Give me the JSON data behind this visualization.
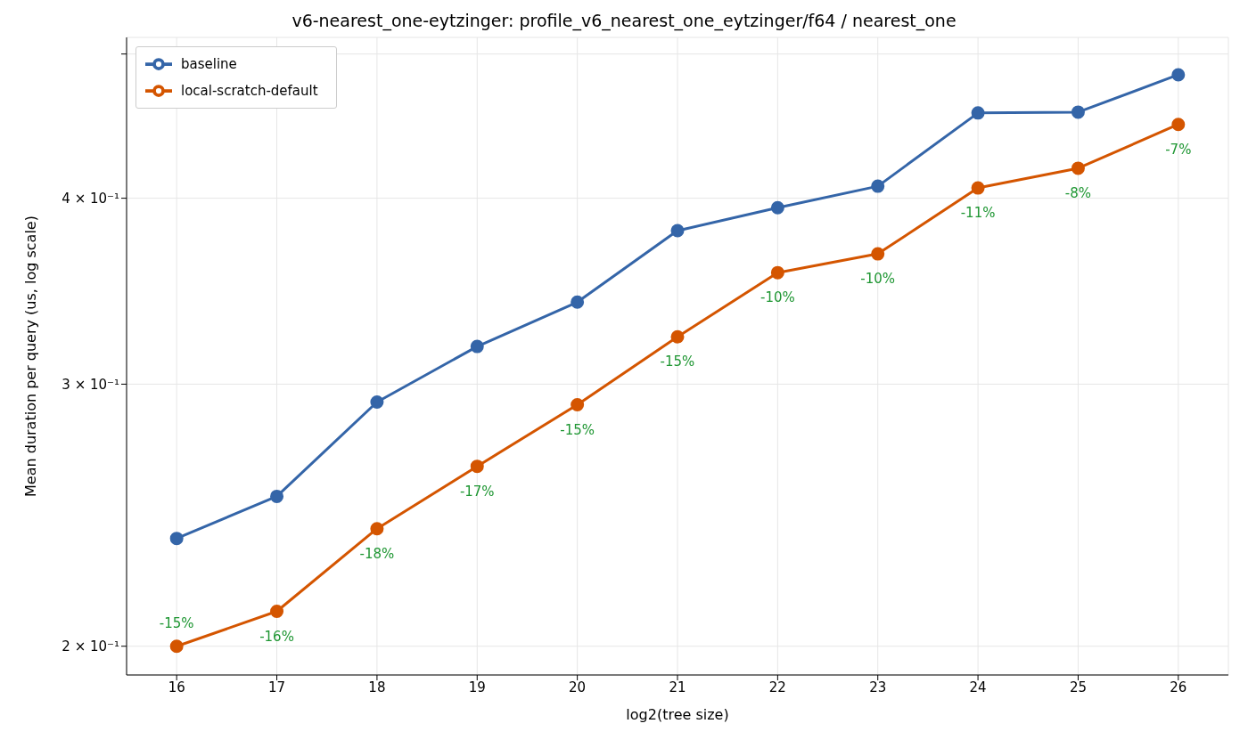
{
  "chart_data": {
    "type": "line",
    "title": "v6-nearest_one-eytzinger: profile_v6_nearest_one_eytzinger/f64 / nearest_one",
    "xlabel": "log2(tree size)",
    "ylabel": "Mean duration per query (us, log scale)",
    "x": [
      16,
      17,
      18,
      19,
      20,
      21,
      22,
      23,
      24,
      25,
      26
    ],
    "series": [
      {
        "name": "baseline",
        "color": "#3465a8",
        "values": [
          0.2363,
          0.2522,
          0.2918,
          0.318,
          0.3406,
          0.3804,
          0.3942,
          0.4075,
          0.4564,
          0.457,
          0.4842
        ]
      },
      {
        "name": "local-scratch-default",
        "color": "#d45500",
        "values": [
          0.2,
          0.2111,
          0.2399,
          0.2642,
          0.2906,
          0.3228,
          0.3565,
          0.367,
          0.4064,
          0.419,
          0.4484
        ]
      }
    ],
    "xlim": [
      15.5,
      26.5
    ],
    "xticks": [
      16,
      17,
      18,
      19,
      20,
      21,
      22,
      23,
      24,
      25,
      26
    ],
    "ylim": [
      0.1913,
      0.513
    ],
    "yticks": [
      {
        "value": 0.2,
        "label": "2 × 10⁻¹"
      },
      {
        "value": 0.3,
        "label": "3 × 10⁻¹"
      },
      {
        "value": 0.4,
        "label": "4 × 10⁻¹"
      },
      {
        "value": 0.5,
        "label": null
      }
    ],
    "log": "y",
    "grid": true,
    "legend": "top left",
    "marker": "circle",
    "line_style": "solid",
    "annotations": [
      {
        "text": "-15%",
        "x": 16,
        "y": 0.2
      },
      {
        "text": "-16%",
        "x": 17,
        "y": 0.2111
      },
      {
        "text": "-18%",
        "x": 18,
        "y": 0.2399
      },
      {
        "text": "-17%",
        "x": 19,
        "y": 0.2642
      },
      {
        "text": "-15%",
        "x": 20,
        "y": 0.2906
      },
      {
        "text": "-15%",
        "x": 21,
        "y": 0.3228
      },
      {
        "text": "-10%",
        "x": 22,
        "y": 0.3565
      },
      {
        "text": "-10%",
        "x": 23,
        "y": 0.367
      },
      {
        "text": "-11%",
        "x": 24,
        "y": 0.4064
      },
      {
        "text": "-8%",
        "x": 25,
        "y": 0.419
      },
      {
        "text": "-7%",
        "x": 26,
        "y": 0.4484
      }
    ]
  }
}
